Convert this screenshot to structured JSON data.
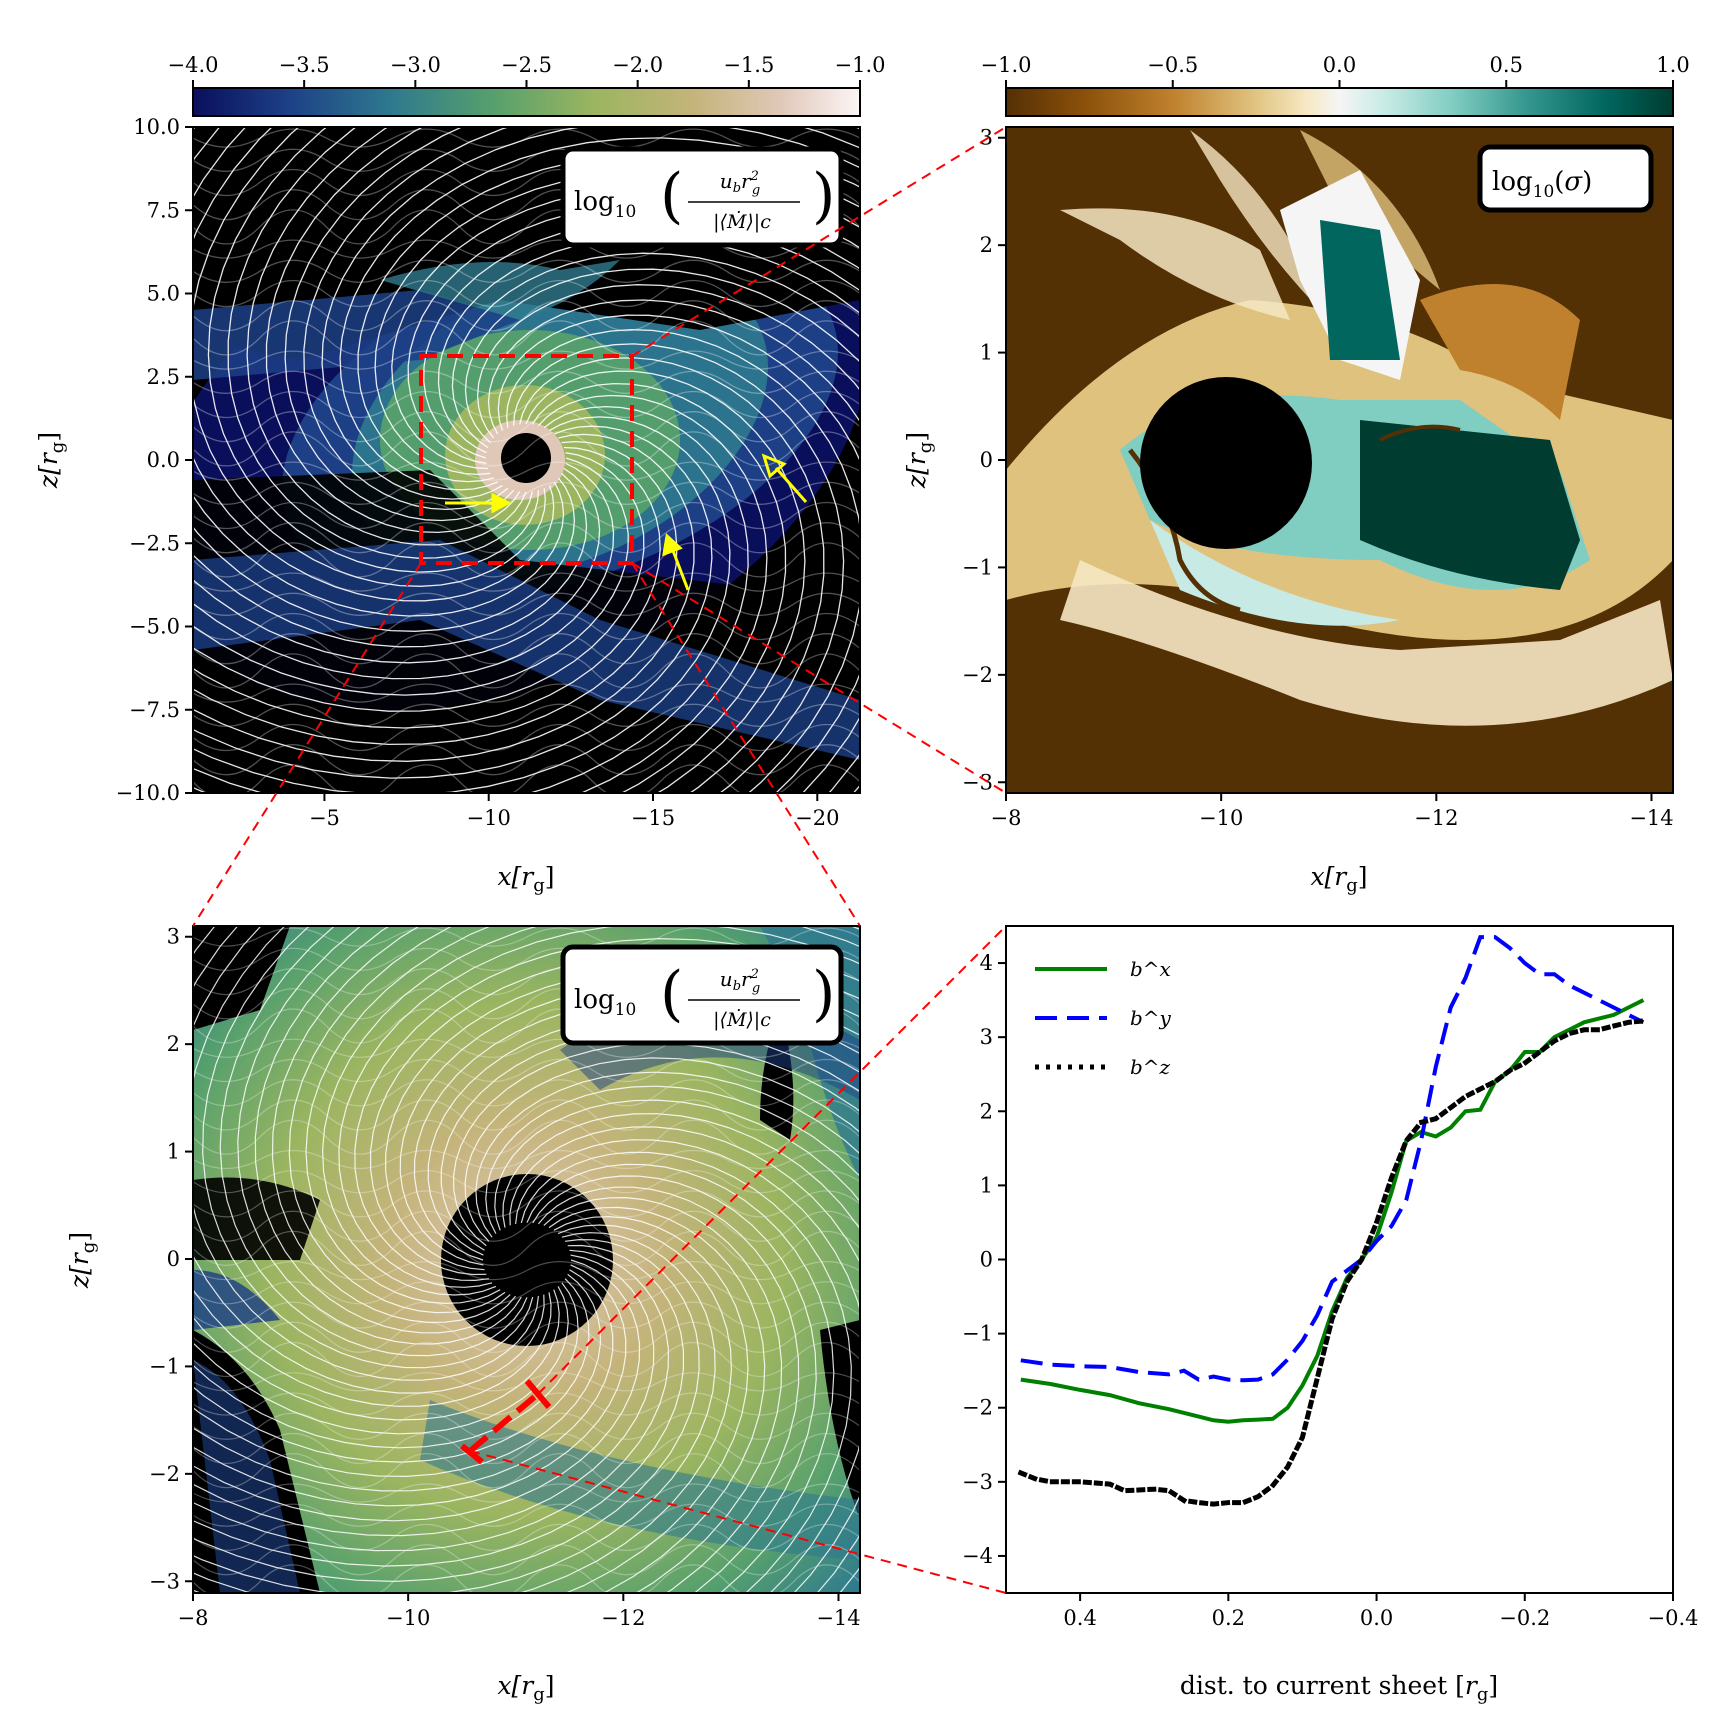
{
  "panels": {
    "top_left": {
      "colorbar_ticks": [
        "−4.0",
        "−3.5",
        "−3.0",
        "−2.5",
        "−2.0",
        "−1.5",
        "−1.0"
      ],
      "y_ticks": [
        "10.0",
        "7.5",
        "5.0",
        "2.5",
        "0.0",
        "−2.5",
        "−5.0",
        "−7.5",
        "−10.0"
      ],
      "x_ticks": [
        "−5",
        "−10",
        "−15",
        "−20"
      ],
      "xlabel": "x[r_g]",
      "ylabel": "z[r_g]",
      "label": "log10( u_b r_g^2 / |⟨Ṁ⟩|c )",
      "colormap": [
        "#0a0f5c",
        "#1c3f86",
        "#2f7a8e",
        "#56a06d",
        "#9bb560",
        "#c4b47a",
        "#e0c8b8",
        "#fbf5f5"
      ]
    },
    "top_right": {
      "colorbar_ticks": [
        "−1.0",
        "−0.5",
        "0.0",
        "0.5",
        "1.0"
      ],
      "y_ticks": [
        "3",
        "2",
        "1",
        "0",
        "−1",
        "−2",
        "−3"
      ],
      "x_ticks": [
        "−8",
        "−10",
        "−12",
        "−14"
      ],
      "xlabel": "x[r_g]",
      "ylabel": "z[r_g]",
      "label": "log10(σ)",
      "colormap": [
        "#543005",
        "#8c510a",
        "#bf812d",
        "#dfc27d",
        "#f6e8c3",
        "#f5f5f5",
        "#c7eae5",
        "#80cdc1",
        "#35978f",
        "#01665e",
        "#003c30"
      ]
    },
    "bottom_left": {
      "y_ticks": [
        "3",
        "2",
        "1",
        "0",
        "−1",
        "−2",
        "−3"
      ],
      "x_ticks": [
        "−8",
        "−10",
        "−12",
        "−14"
      ],
      "xlabel": "x[r_g]",
      "ylabel": "z[r_g]",
      "label": "log10( u_b r_g^2 / |⟨Ṁ⟩|c )"
    }
  },
  "chart_data": {
    "type": "line",
    "title": "",
    "xlabel": "dist. to current sheet [r_g]",
    "ylabel": "",
    "xlim": [
      0.5,
      -0.4
    ],
    "ylim": [
      -4.5,
      4.5
    ],
    "x_ticks": [
      0.4,
      0.2,
      0.0,
      -0.2,
      -0.4
    ],
    "x_tick_labels": [
      "0.4",
      "0.2",
      "0.0",
      "−0.2",
      "−0.4"
    ],
    "y_ticks": [
      4,
      3,
      2,
      1,
      0,
      -1,
      -2,
      -3,
      -4
    ],
    "y_tick_labels": [
      "4",
      "3",
      "2",
      "1",
      "0",
      "−1",
      "−2",
      "−3",
      "−4"
    ],
    "legend_position": "top-left",
    "series": [
      {
        "name": "b^x",
        "color": "#008000",
        "style": "solid",
        "x": [
          0.48,
          0.44,
          0.4,
          0.36,
          0.32,
          0.28,
          0.24,
          0.22,
          0.2,
          0.18,
          0.16,
          0.14,
          0.12,
          0.1,
          0.08,
          0.06,
          0.04,
          0.02,
          0.0,
          -0.02,
          -0.04,
          -0.06,
          -0.08,
          -0.1,
          -0.12,
          -0.14,
          -0.16,
          -0.18,
          -0.2,
          -0.22,
          -0.24,
          -0.26,
          -0.28,
          -0.3,
          -0.32,
          -0.34,
          -0.36
        ],
        "y": [
          -1.62,
          -1.68,
          -1.76,
          -1.83,
          -1.94,
          -2.02,
          -2.12,
          -2.17,
          -2.19,
          -2.17,
          -2.16,
          -2.15,
          -2.0,
          -1.7,
          -1.3,
          -0.7,
          -0.25,
          0.0,
          0.3,
          0.9,
          1.6,
          1.72,
          1.66,
          1.78,
          2.0,
          2.02,
          2.4,
          2.55,
          2.8,
          2.8,
          3.0,
          3.1,
          3.2,
          3.25,
          3.3,
          3.4,
          3.5
        ]
      },
      {
        "name": "b^y",
        "color": "#0000ff",
        "style": "dashed",
        "x": [
          0.48,
          0.44,
          0.4,
          0.36,
          0.32,
          0.28,
          0.26,
          0.24,
          0.22,
          0.2,
          0.18,
          0.16,
          0.14,
          0.12,
          0.1,
          0.08,
          0.06,
          0.04,
          0.02,
          0.0,
          -0.02,
          -0.04,
          -0.06,
          -0.08,
          -0.1,
          -0.12,
          -0.14,
          -0.16,
          -0.18,
          -0.2,
          -0.22,
          -0.24,
          -0.26,
          -0.28,
          -0.3,
          -0.32,
          -0.34,
          -0.36
        ],
        "y": [
          -1.36,
          -1.42,
          -1.44,
          -1.45,
          -1.52,
          -1.55,
          -1.5,
          -1.62,
          -1.58,
          -1.62,
          -1.63,
          -1.62,
          -1.55,
          -1.35,
          -1.1,
          -0.75,
          -0.3,
          -0.15,
          0.0,
          0.25,
          0.45,
          0.8,
          1.6,
          2.6,
          3.4,
          3.8,
          4.35,
          4.35,
          4.2,
          4.0,
          3.85,
          3.85,
          3.7,
          3.6,
          3.5,
          3.4,
          3.3,
          3.2
        ]
      },
      {
        "name": "b^z",
        "color": "#000000",
        "style": "dotted",
        "x": [
          0.48,
          0.46,
          0.44,
          0.4,
          0.36,
          0.34,
          0.3,
          0.28,
          0.26,
          0.24,
          0.22,
          0.2,
          0.18,
          0.16,
          0.14,
          0.12,
          0.1,
          0.08,
          0.06,
          0.04,
          0.02,
          0.0,
          -0.02,
          -0.04,
          -0.06,
          -0.08,
          -0.1,
          -0.12,
          -0.14,
          -0.16,
          -0.18,
          -0.2,
          -0.22,
          -0.24,
          -0.26,
          -0.28,
          -0.3,
          -0.32,
          -0.34,
          -0.36
        ],
        "y": [
          -2.88,
          -2.96,
          -3.0,
          -3.0,
          -3.03,
          -3.12,
          -3.1,
          -3.12,
          -3.25,
          -3.28,
          -3.3,
          -3.28,
          -3.28,
          -3.2,
          -3.05,
          -2.8,
          -2.4,
          -1.6,
          -0.8,
          -0.3,
          0.0,
          0.5,
          1.1,
          1.6,
          1.85,
          1.9,
          2.05,
          2.2,
          2.3,
          2.4,
          2.55,
          2.65,
          2.8,
          2.95,
          3.05,
          3.1,
          3.1,
          3.15,
          3.2,
          3.22
        ]
      }
    ]
  }
}
